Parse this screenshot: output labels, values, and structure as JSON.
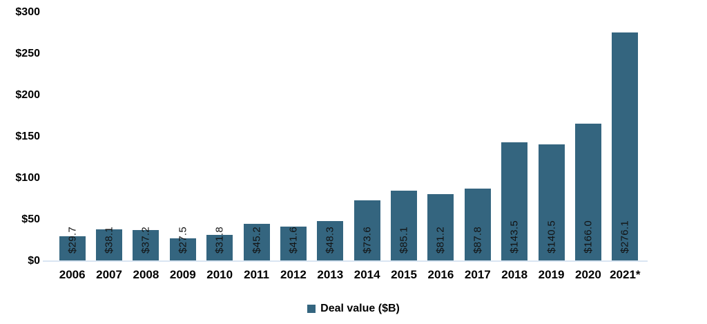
{
  "chart_data": {
    "type": "bar",
    "categories": [
      "2006",
      "2007",
      "2008",
      "2009",
      "2010",
      "2011",
      "2012",
      "2013",
      "2014",
      "2015",
      "2016",
      "2017",
      "2018",
      "2019",
      "2020",
      "2021*"
    ],
    "values": [
      29.7,
      38.1,
      37.2,
      27.5,
      31.8,
      45.2,
      41.6,
      48.3,
      73.6,
      85.1,
      81.2,
      87.8,
      143.5,
      140.5,
      166.0,
      276.1
    ],
    "bar_labels": [
      "$29.7",
      "$38.1",
      "$37.2",
      "$27.5",
      "$31.8",
      "$45.2",
      "$41.6",
      "$48.3",
      "$73.6",
      "$85.1",
      "$81.2",
      "$87.8",
      "$143.5",
      "$140.5",
      "$166.0",
      "$276.1"
    ],
    "title": "",
    "xlabel": "",
    "ylabel": "",
    "ylim": [
      0,
      300
    ],
    "y_tick_values": [
      0,
      50,
      100,
      150,
      200,
      250,
      300
    ],
    "y_ticks": [
      "$0",
      "$50",
      "$100",
      "$150",
      "$200",
      "$250",
      "$300"
    ],
    "grid": false,
    "legend_position": "bottom",
    "legend_label": "Deal value ($B)",
    "bar_color": "#34657F",
    "axis_line_color": "#D9E5F2",
    "label_color": "#121212"
  }
}
